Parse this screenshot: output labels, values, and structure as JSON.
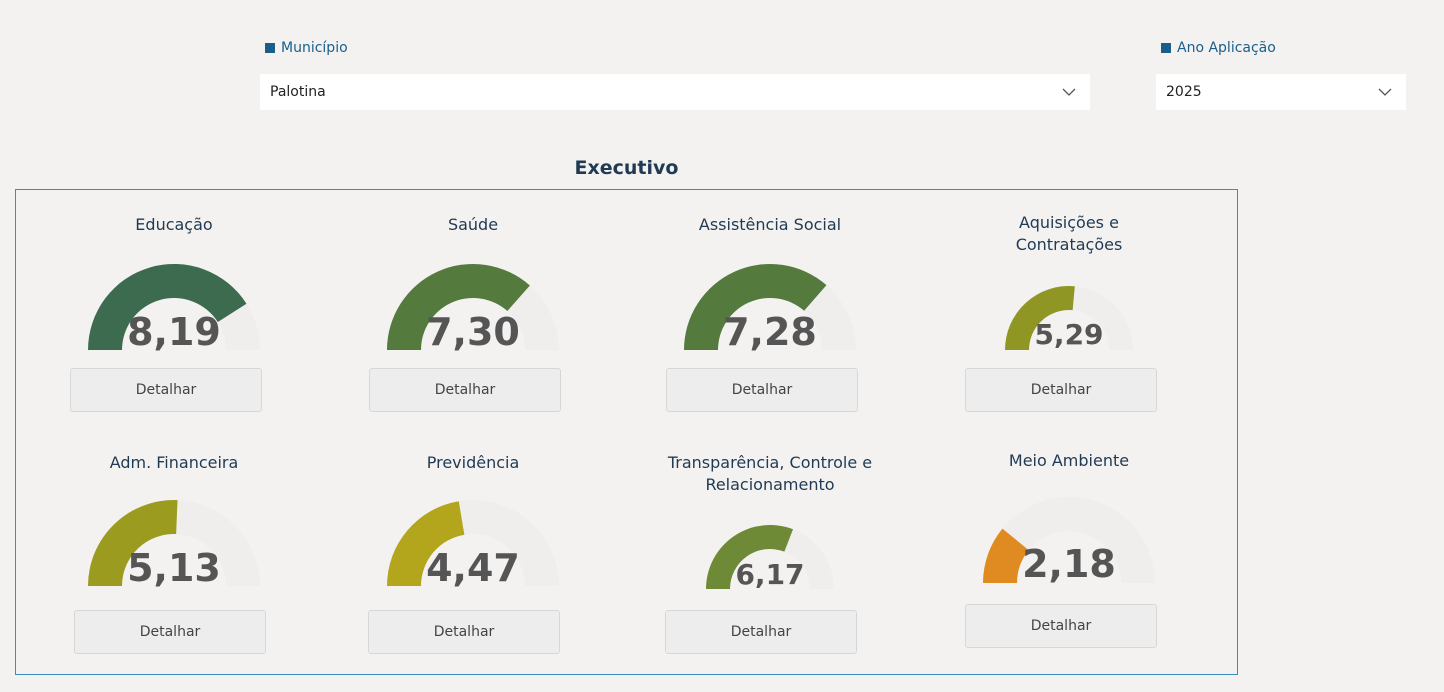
{
  "filters": {
    "municipio": {
      "label": "Município",
      "value": "Palotina"
    },
    "ano": {
      "label": "Ano Aplicação",
      "value": "2025"
    }
  },
  "section_title": "Executivo",
  "detail_label": "Detalhar",
  "chart_data": {
    "type": "gauge",
    "min": 0,
    "max": 10,
    "gauges": [
      {
        "title": "Educação",
        "value": 8.19,
        "display": "8,19",
        "color": "#3d6b4f"
      },
      {
        "title": "Saúde",
        "value": 7.3,
        "display": "7,30",
        "color": "#557a3e"
      },
      {
        "title": "Assistência Social",
        "value": 7.28,
        "display": "7,28",
        "color": "#557a3e"
      },
      {
        "title": "Aquisições e Contratações",
        "value": 5.29,
        "display": "5,29",
        "color": "#8f9623"
      },
      {
        "title": "Adm. Financeira",
        "value": 5.13,
        "display": "5,13",
        "color": "#9b9b20"
      },
      {
        "title": "Previdência",
        "value": 4.47,
        "display": "4,47",
        "color": "#b3a51c"
      },
      {
        "title": "Transparência, Controle e Relacionamento",
        "value": 6.17,
        "display": "6,17",
        "color": "#6e8a36"
      },
      {
        "title": "Meio Ambiente",
        "value": 2.18,
        "display": "2,18",
        "color": "#e08b22"
      }
    ]
  }
}
